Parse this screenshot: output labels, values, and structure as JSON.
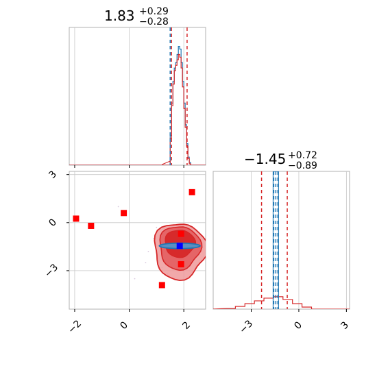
{
  "colors": {
    "red": "#d62728",
    "blue": "#1f77b4",
    "marker_red": "#ff0000",
    "marker_blue": "#0000ff",
    "grid": "#c8c8c8",
    "frame": "#b0b0b0"
  },
  "chart_data": [
    {
      "panel": "top-left",
      "type": "histogram",
      "title": {
        "value": "1.83",
        "plus": "+0.29",
        "minus": "−0.28"
      },
      "xlim": [
        -2.2,
        2.8
      ],
      "vlines_red": [
        1.55,
        2.12
      ],
      "vlines_blue": [
        1.5
      ],
      "hist_bins": [
        1.5,
        1.55,
        1.6,
        1.65,
        1.7,
        1.75,
        1.8,
        1.85,
        1.9,
        1.95,
        2.0,
        2.05,
        2.1,
        2.15,
        2.2,
        2.25
      ],
      "hist_blue": [
        0.22,
        0.46,
        0.62,
        0.72,
        0.76,
        0.82,
        0.88,
        0.86,
        0.76,
        0.62,
        0.46,
        0.3,
        0.16,
        0.06,
        0.02
      ],
      "hist_red": [
        0.2,
        0.44,
        0.6,
        0.7,
        0.74,
        0.78,
        0.82,
        0.8,
        0.72,
        0.58,
        0.42,
        0.28,
        0.14,
        0.05,
        0.01
      ]
    },
    {
      "panel": "bottom-left",
      "type": "scatter",
      "xlim": [
        -2.2,
        2.8
      ],
      "ylim": [
        -5.4,
        3.2
      ],
      "xticks": [
        "−2",
        "0",
        "2"
      ],
      "yticks": [
        "3",
        "0",
        "−3"
      ],
      "points_red": [
        {
          "x": -1.95,
          "y": 0.25
        },
        {
          "x": -1.4,
          "y": -0.2
        },
        {
          "x": -0.2,
          "y": 0.6
        },
        {
          "x": 1.2,
          "y": -3.9
        },
        {
          "x": 1.9,
          "y": -2.6
        },
        {
          "x": 1.9,
          "y": -0.7
        },
        {
          "x": 2.3,
          "y": 1.9
        }
      ],
      "point_blue": {
        "x": 1.85,
        "y": -1.45
      },
      "contours": "filled red density, blue horizontal band"
    },
    {
      "panel": "bottom-right",
      "type": "histogram",
      "title": {
        "value": "−1.45",
        "plus": "+0.72",
        "minus": "−0.89"
      },
      "xlim": [
        -5.4,
        3.2
      ],
      "xticks": [
        "−3",
        "0",
        "3"
      ],
      "vlines_red": [
        -2.35,
        -0.73
      ],
      "vlines_blue": [
        -1.58,
        -1.45,
        -1.32
      ]
    }
  ]
}
